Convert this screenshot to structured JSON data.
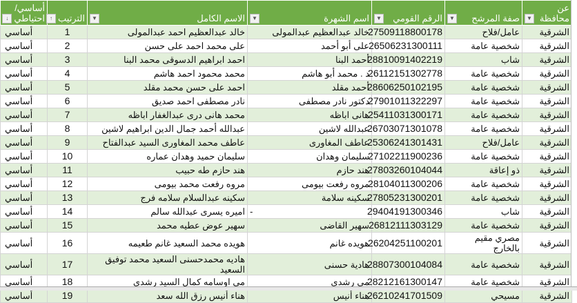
{
  "header": {
    "status": "أساسي/ احتياطي",
    "order": "الترتيب",
    "full_name": "الاسم الكامل",
    "known_name": "اسم الشهرة",
    "national_id": "الرقم القومي",
    "capacity": "صفة المرشح",
    "governorate": "عن محافظة"
  },
  "colors": {
    "header": "#70ad47",
    "band": "#e2efda"
  },
  "rows": [
    {
      "status": "أساسي",
      "order": "1",
      "full_name": "خالد عبدالعظيم احمد عبدالمولى",
      "known_name": "خالد عبدالعظيم عبدالمولى",
      "national_id": "27509118800178",
      "capacity": "عامل/فلاح",
      "governorate": "الشرقية"
    },
    {
      "status": "أساسي",
      "order": "2",
      "full_name": "على محمد احمد على حسن",
      "known_name": "على أبو أحمد",
      "national_id": "26506231300111",
      "capacity": "شخصية عامة",
      "governorate": "الشرقية"
    },
    {
      "status": "أساسي",
      "order": "3",
      "full_name": "احمد ابراهيم الدسوقى محمد البنا",
      "known_name": "أحمد البنا",
      "national_id": "28810091402219",
      "capacity": "شاب",
      "governorate": "الشرقية"
    },
    {
      "status": "أساسي",
      "order": "4",
      "full_name": "محمد محمود احمد هاشم",
      "known_name": "د . محمد أبو هاشم",
      "national_id": "26112151302778",
      "capacity": "شخصية عامة",
      "governorate": "الشرقية"
    },
    {
      "status": "أساسي",
      "order": "5",
      "full_name": "احمد على حسن محمد مقلد",
      "known_name": "أحمد مقلد",
      "national_id": "28606250102195",
      "capacity": "شخصية عامة",
      "governorate": "الشرقية"
    },
    {
      "status": "أساسي",
      "order": "6",
      "full_name": "نادر مصطفى احمد صديق",
      "known_name": "دكتور نادر مصطفى",
      "national_id": "27901011322297",
      "capacity": "شخصية عامة",
      "governorate": "الشرقية"
    },
    {
      "status": "أساسي",
      "order": "7",
      "full_name": "محمد هانى درى عبدالغفار اباظه",
      "known_name": "هانى اباظه",
      "national_id": "25411031300171",
      "capacity": "شخصية عامة",
      "governorate": "الشرقية"
    },
    {
      "status": "أساسي",
      "order": "8",
      "full_name": "عبدالله أحمد جمال الدين ابراهيم لاشين",
      "known_name": "عبدالله لاشين",
      "national_id": "26703071301078",
      "capacity": "شخصية عامة",
      "governorate": "الشرقية"
    },
    {
      "status": "أساسي",
      "order": "9",
      "full_name": "عاطف محمد المغاورى السيد عبدالفتاح",
      "known_name": "عاطف المغاورى",
      "national_id": "25306241301431",
      "capacity": "عامل/فلاح",
      "governorate": "الشرقية"
    },
    {
      "status": "أساسي",
      "order": "10",
      "full_name": "سليمان حميد وهدان عماره",
      "known_name": "سليمان وهدان",
      "national_id": "27102211900236",
      "capacity": "شخصية عامة",
      "governorate": "الشرقية"
    },
    {
      "status": "أساسي",
      "order": "11",
      "full_name": "هند حازم طه حبيب",
      "known_name": "هند حازم",
      "national_id": "27803260104044",
      "capacity": "ذو إعاقة",
      "governorate": "الشرقية"
    },
    {
      "status": "أساسي",
      "order": "12",
      "full_name": "مروه رفعت محمد بيومى",
      "known_name": "مروه رفعت بيومى",
      "national_id": "28104011300206",
      "capacity": "شخصية عامة",
      "governorate": "الشرقية"
    },
    {
      "status": "أساسي",
      "order": "13",
      "full_name": "سكينه عبدالسلام سلامه فرج",
      "known_name": "سكينه سلامة",
      "national_id": "27805231300201",
      "capacity": "شخصية عامة",
      "governorate": "الشرقية"
    },
    {
      "status": "أساسي",
      "order": "14",
      "full_name": "اميره يسرى عبدالله سالم",
      "known_name": "-",
      "national_id": "29404191300346",
      "capacity": "شاب",
      "governorate": "الشرقية"
    },
    {
      "status": "أساسي",
      "order": "15",
      "full_name": "سهير عوض  عطيه محمد",
      "known_name": "سهير القاضى",
      "national_id": "26812111303129",
      "capacity": "شخصية عامة",
      "governorate": "الشرقية"
    },
    {
      "status": "أساسي",
      "order": "16",
      "full_name": "هويده محمد السعيد غانم طعيمه",
      "known_name": "هويده غانم",
      "national_id": "26204251100201",
      "capacity": "مصري مقيم بالخارج",
      "governorate": "الشرقية"
    },
    {
      "status": "أساسي",
      "order": "17",
      "full_name": "هاديه محمدحسنى السعيد محمد توفيق السعيد",
      "known_name": "هادية حسنى",
      "national_id": "28807300104084",
      "capacity": "شخصية عامة",
      "governorate": "الشرقية"
    },
    {
      "status": "أساسي",
      "order": "18",
      "full_name": "مى اوسامه كمال السيد رشدى",
      "known_name": "مى رشدي",
      "national_id": "28212161300147",
      "capacity": "شخصية عامة",
      "governorate": "الشرقية"
    },
    {
      "status": "أساسي",
      "order": "19",
      "full_name": "هناء أنيس  رزق الله سعد",
      "known_name": "هناء أنيس",
      "national_id": "26210241701509",
      "capacity": "مسيحي",
      "governorate": "الشرقية"
    }
  ]
}
